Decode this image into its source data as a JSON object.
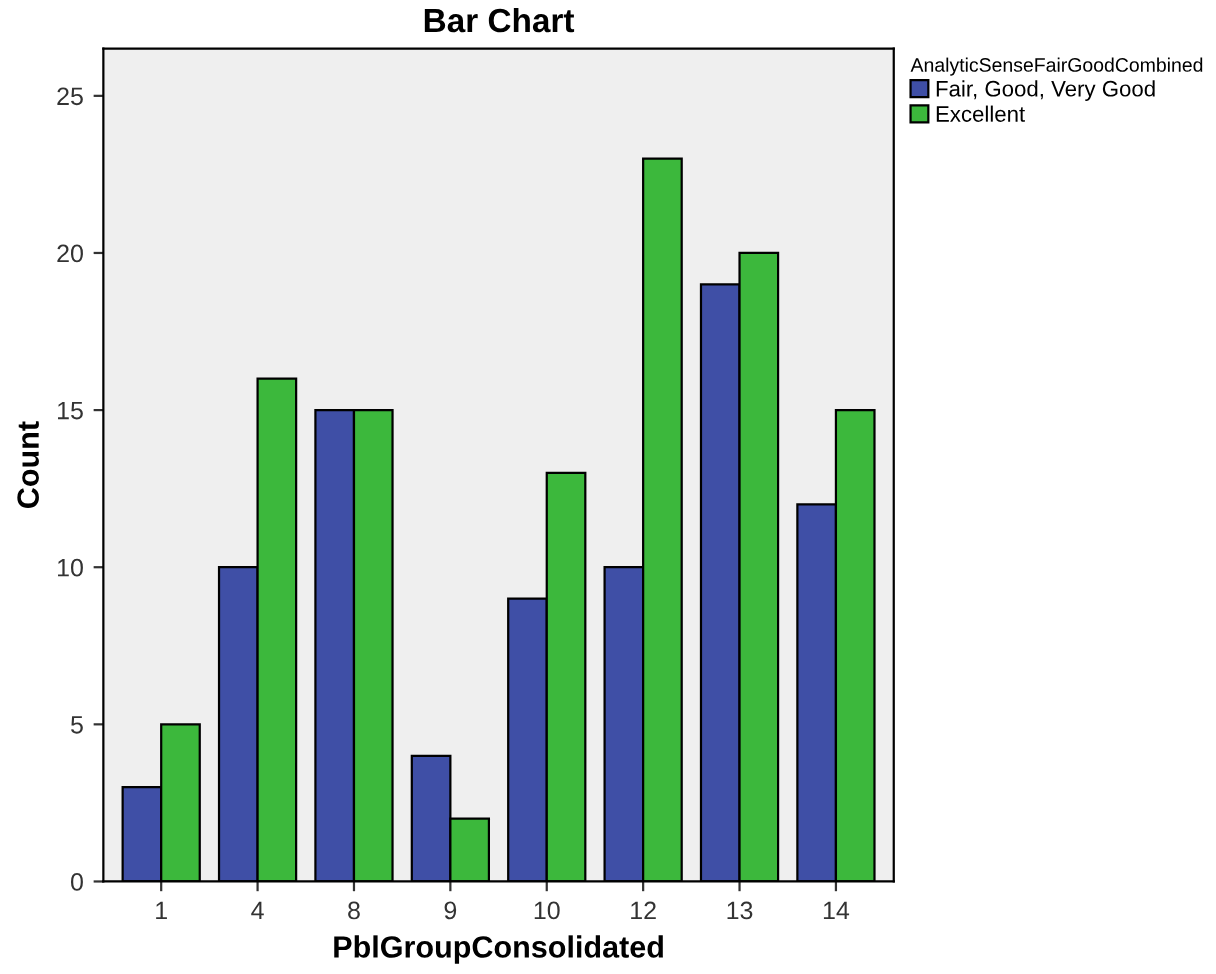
{
  "chart_data": {
    "type": "bar",
    "title": "Bar Chart",
    "xlabel": "PblGroupConsolidated",
    "ylabel": "Count",
    "legend_title": "AnalyticSenseFairGoodCombined",
    "categories": [
      "1",
      "4",
      "8",
      "9",
      "10",
      "12",
      "13",
      "14"
    ],
    "series": [
      {
        "name": "Fair, Good, Very Good",
        "color": "#3f4fa6",
        "values": [
          3,
          10,
          15,
          4,
          9,
          10,
          19,
          12
        ]
      },
      {
        "name": "Excellent",
        "color": "#3cb83c",
        "values": [
          5,
          16,
          15,
          2,
          13,
          23,
          20,
          15
        ]
      }
    ],
    "ylim": [
      0,
      26.5
    ],
    "yticks": [
      0,
      5,
      10,
      15,
      20,
      25
    ],
    "grid": false,
    "legend": "top right"
  }
}
